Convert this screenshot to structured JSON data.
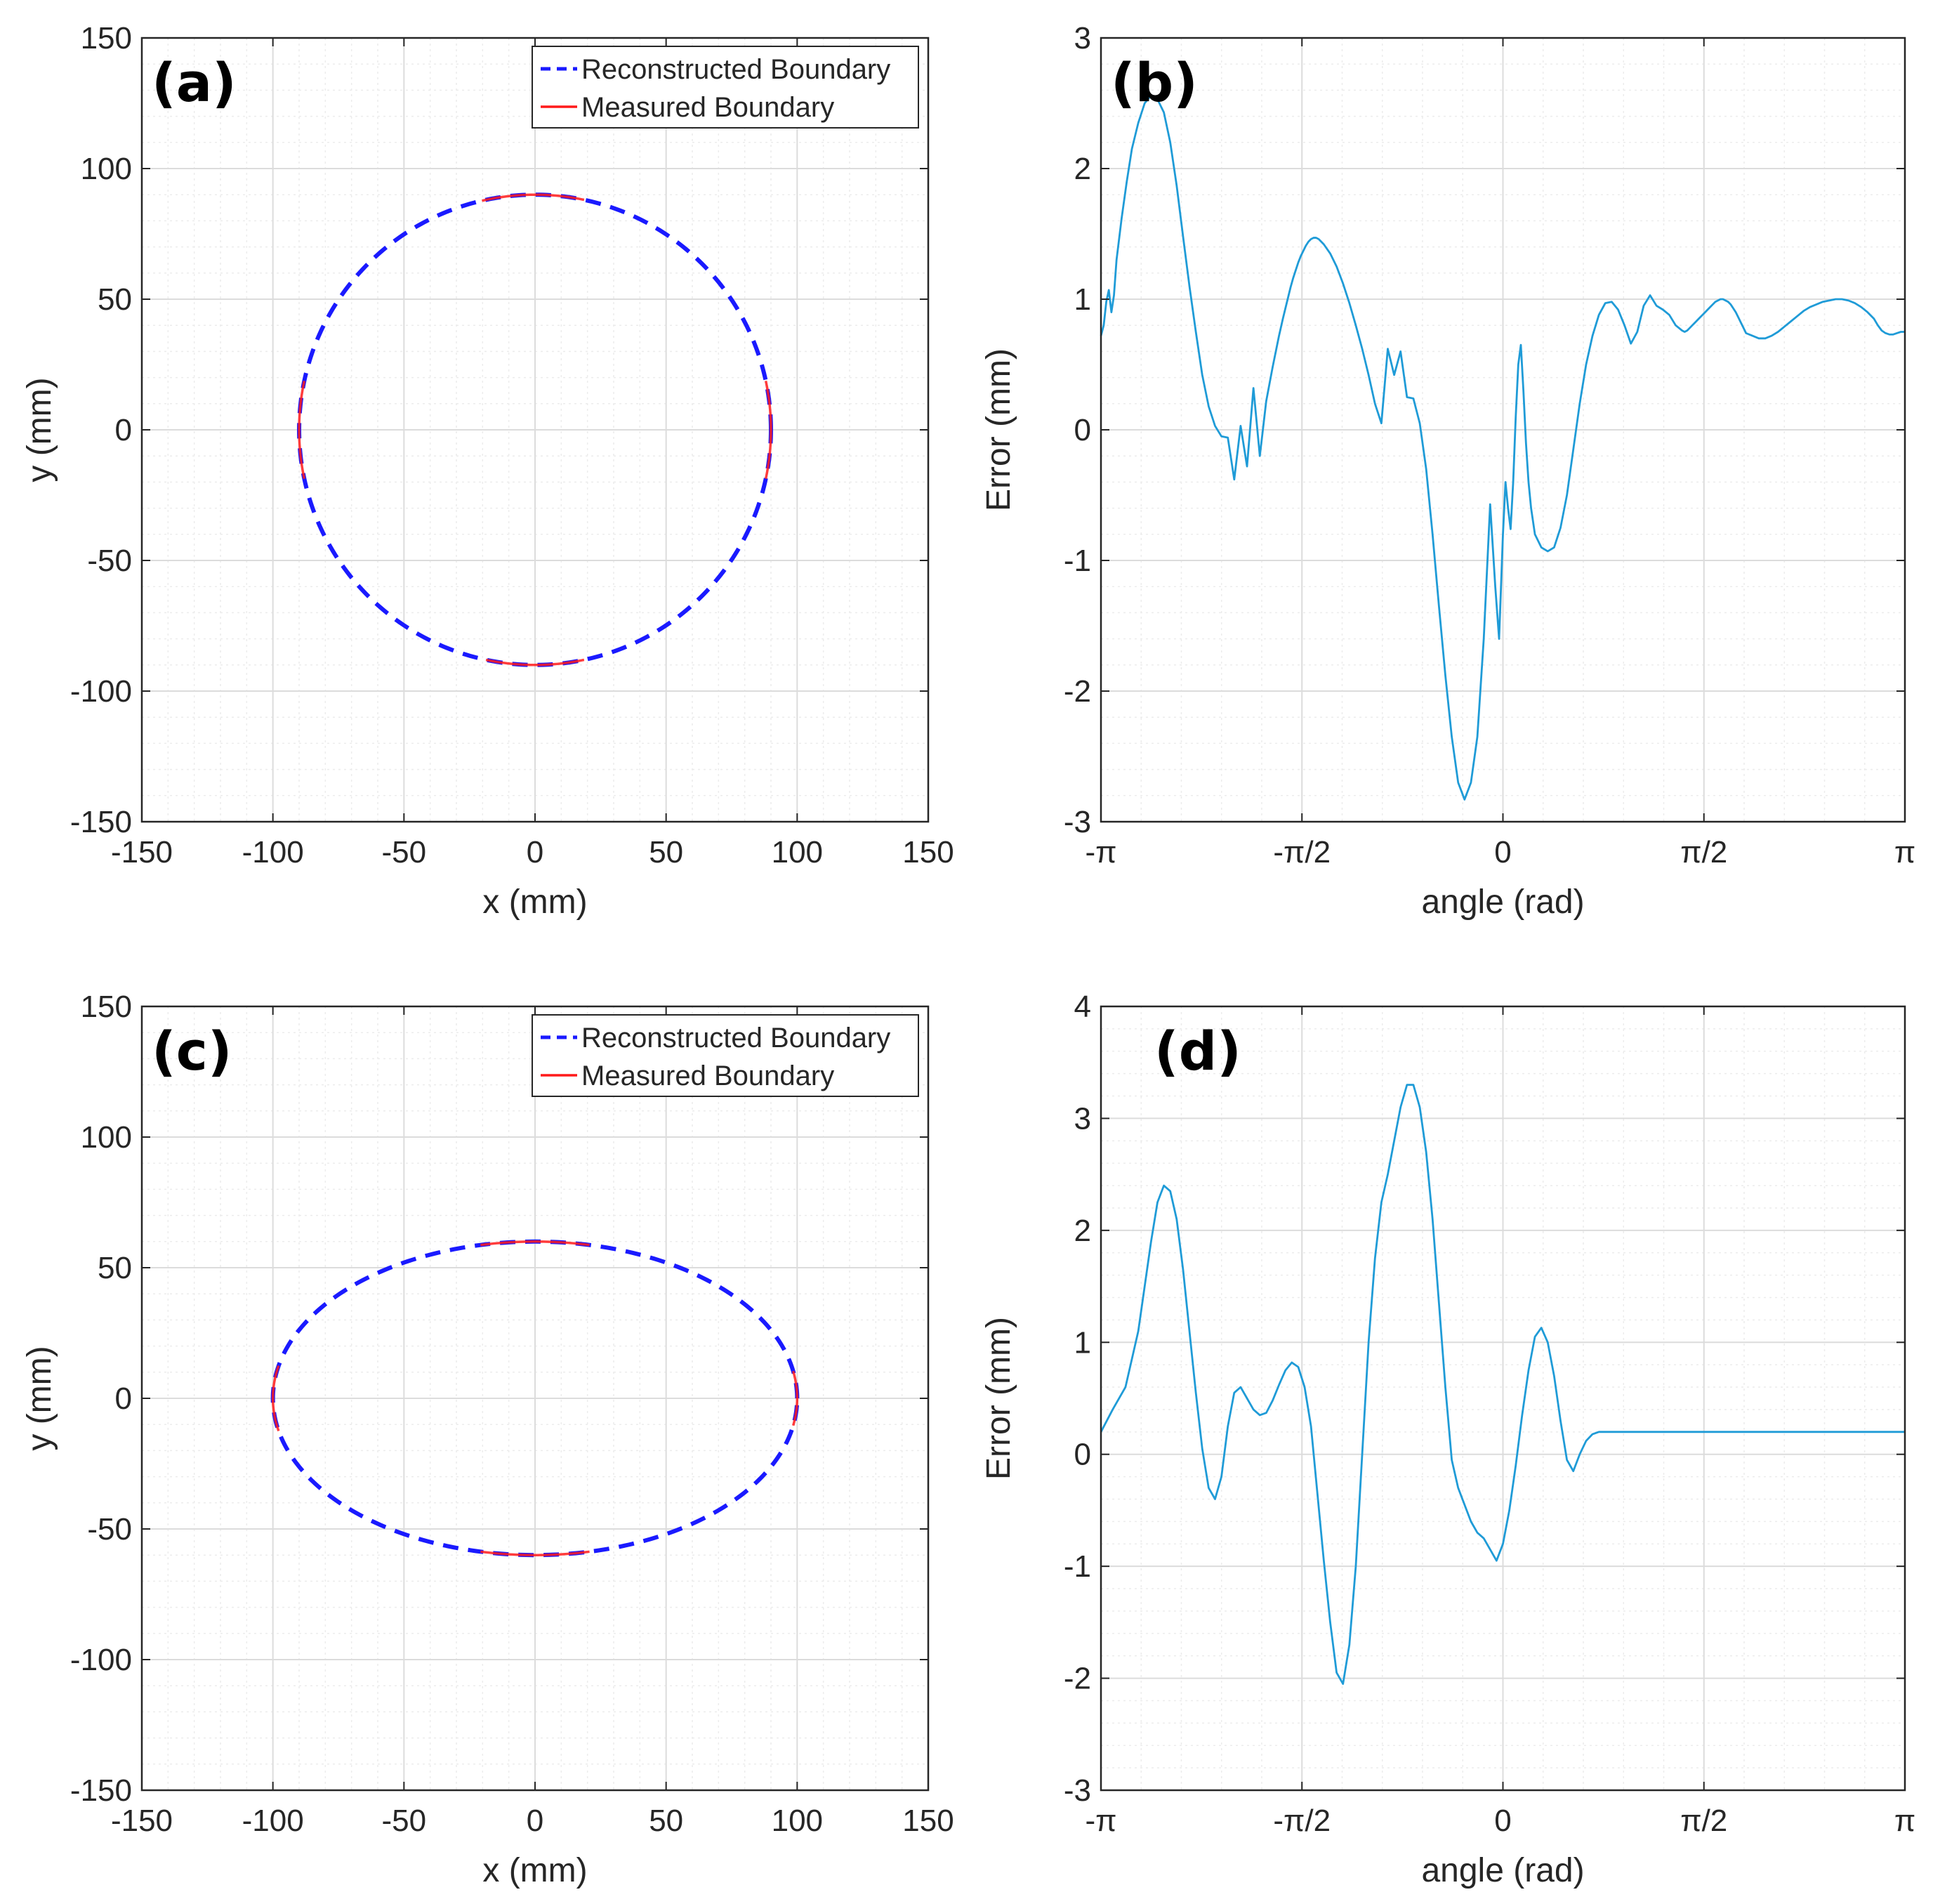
{
  "chart_data": [
    {
      "id": "a",
      "type": "line",
      "panel_label": "(a)",
      "xlabel": "x (mm)",
      "ylabel": "y (mm)",
      "xlim": [
        -150,
        150
      ],
      "ylim": [
        -150,
        150
      ],
      "xticks": [
        -150,
        -100,
        -50,
        0,
        50,
        100,
        150
      ],
      "yticks": [
        -150,
        -100,
        -50,
        0,
        50,
        100,
        150
      ],
      "xtick_labels": [
        "-150",
        "-100",
        "-50",
        "0",
        "50",
        "100",
        "150"
      ],
      "ytick_labels": [
        "-150",
        "-100",
        "-50",
        "0",
        "50",
        "100",
        "150"
      ],
      "grid": true,
      "legend": {
        "position": "top-right",
        "entries": [
          {
            "label": "Reconstructed Boundary",
            "style": "dashed",
            "color": "#1a1aff"
          },
          {
            "label": "Measured Boundary",
            "style": "solid",
            "color": "#ff1a1a"
          }
        ]
      },
      "series": [
        {
          "name": "Reconstructed Boundary",
          "color": "#1a1aff",
          "style": "dashed",
          "shape": {
            "kind": "closed",
            "rx": 90,
            "ry": 90,
            "points": 360
          }
        },
        {
          "name": "Measured Boundary",
          "color": "#ff1a1a",
          "style": "solid",
          "segments_deg": [
            [
              -12,
              12
            ],
            [
              78,
              103
            ],
            [
              168,
              192
            ],
            [
              258,
              282
            ]
          ],
          "shape": {
            "kind": "arcs",
            "rx": 90,
            "ry": 90
          }
        }
      ]
    },
    {
      "id": "b",
      "type": "line",
      "panel_label": "(b)",
      "xlabel": "angle (rad)",
      "ylabel": "Error (mm)",
      "xlim": [
        -3.14159,
        3.14159
      ],
      "ylim": [
        -3,
        3
      ],
      "xticks": [
        -3.14159,
        -1.5708,
        0,
        1.5708,
        3.14159
      ],
      "xtick_labels": [
        "-π",
        "-π/2",
        "0",
        "π/2",
        "π"
      ],
      "yticks": [
        -3,
        -2,
        -1,
        0,
        1,
        2,
        3
      ],
      "ytick_labels": [
        "-3",
        "-2",
        "-1",
        "0",
        "1",
        "2",
        "3"
      ],
      "grid": true,
      "series": [
        {
          "name": "Error",
          "color": "#1f9bd7",
          "x": [
            -3.1416,
            -3.12,
            -3.1,
            -3.08,
            -3.06,
            -3.04,
            -3.02,
            -2.98,
            -2.94,
            -2.9,
            -2.85,
            -2.8,
            -2.75,
            -2.7,
            -2.65,
            -2.6,
            -2.55,
            -2.5,
            -2.45,
            -2.4,
            -2.35,
            -2.3,
            -2.25,
            -2.2,
            -2.15,
            -2.1,
            -2.05,
            -2.0,
            -1.95,
            -1.9,
            -1.85,
            -1.8,
            -1.75,
            -1.72,
            -1.7,
            -1.68,
            -1.66,
            -1.64,
            -1.62,
            -1.6,
            -1.58,
            -1.56,
            -1.54,
            -1.52,
            -1.5,
            -1.48,
            -1.46,
            -1.44,
            -1.42,
            -1.4,
            -1.35,
            -1.3,
            -1.25,
            -1.2,
            -1.15,
            -1.1,
            -1.05,
            -1.0,
            -0.95,
            -0.9,
            -0.85,
            -0.8,
            -0.75,
            -0.7,
            -0.65,
            -0.6,
            -0.55,
            -0.5,
            -0.45,
            -0.4,
            -0.35,
            -0.3,
            -0.25,
            -0.2,
            -0.15,
            -0.1,
            -0.06,
            -0.03,
            0.0,
            0.02,
            0.04,
            0.06,
            0.08,
            0.1,
            0.12,
            0.14,
            0.16,
            0.18,
            0.2,
            0.22,
            0.25,
            0.3,
            0.35,
            0.4,
            0.45,
            0.5,
            0.55,
            0.6,
            0.65,
            0.7,
            0.75,
            0.8,
            0.85,
            0.9,
            0.95,
            1.0,
            1.05,
            1.1,
            1.15,
            1.2,
            1.25,
            1.3,
            1.35,
            1.4,
            1.42,
            1.44,
            1.46,
            1.48,
            1.5,
            1.52,
            1.54,
            1.56,
            1.58,
            1.6,
            1.62,
            1.64,
            1.66,
            1.68,
            1.7,
            1.72,
            1.74,
            1.76,
            1.78,
            1.8,
            1.82,
            1.84,
            1.86,
            1.88,
            1.9,
            1.95,
            2.0,
            2.05,
            2.1,
            2.15,
            2.2,
            2.25,
            2.3,
            2.35,
            2.4,
            2.45,
            2.5,
            2.55,
            2.6,
            2.65,
            2.7,
            2.75,
            2.8,
            2.85,
            2.9,
            2.93,
            2.96,
            2.99,
            3.02,
            3.05,
            3.08,
            3.11,
            3.1416
          ],
          "y": [
            0.72,
            0.8,
            0.98,
            1.07,
            0.9,
            1.03,
            1.3,
            1.62,
            1.9,
            2.15,
            2.35,
            2.5,
            2.56,
            2.53,
            2.43,
            2.2,
            1.87,
            1.48,
            1.1,
            0.75,
            0.42,
            0.18,
            0.03,
            -0.05,
            -0.06,
            -0.38,
            0.03,
            -0.28,
            0.32,
            -0.2,
            0.22,
            0.48,
            0.72,
            0.85,
            0.93,
            1.01,
            1.09,
            1.16,
            1.22,
            1.28,
            1.33,
            1.37,
            1.41,
            1.44,
            1.46,
            1.47,
            1.47,
            1.46,
            1.44,
            1.42,
            1.35,
            1.25,
            1.12,
            0.97,
            0.8,
            0.62,
            0.42,
            0.2,
            0.05,
            0.62,
            0.42,
            0.6,
            0.25,
            0.24,
            0.05,
            -0.3,
            -0.8,
            -1.35,
            -1.88,
            -2.35,
            -2.7,
            -2.83,
            -2.7,
            -2.35,
            -1.6,
            -0.57,
            -1.2,
            -1.6,
            -0.8,
            -0.4,
            -0.6,
            -0.76,
            -0.4,
            0.1,
            0.5,
            0.65,
            0.3,
            -0.1,
            -0.4,
            -0.6,
            -0.8,
            -0.9,
            -0.93,
            -0.9,
            -0.75,
            -0.5,
            -0.15,
            0.2,
            0.5,
            0.72,
            0.88,
            0.97,
            0.98,
            0.92,
            0.8,
            0.66,
            0.75,
            0.95,
            1.03,
            0.95,
            0.92,
            0.88,
            0.8,
            0.76,
            0.75,
            0.76,
            0.78,
            0.8,
            0.82,
            0.84,
            0.86,
            0.88,
            0.9,
            0.92,
            0.94,
            0.96,
            0.98,
            0.99,
            1.0,
            1.0,
            0.99,
            0.98,
            0.96,
            0.93,
            0.9,
            0.86,
            0.82,
            0.78,
            0.74,
            0.72,
            0.7,
            0.7,
            0.72,
            0.75,
            0.79,
            0.83,
            0.87,
            0.91,
            0.94,
            0.96,
            0.98,
            0.99,
            1.0,
            1.0,
            0.99,
            0.97,
            0.94,
            0.9,
            0.85,
            0.8,
            0.76,
            0.74,
            0.73,
            0.73,
            0.74,
            0.75,
            0.75
          ]
        }
      ]
    },
    {
      "id": "c",
      "type": "line",
      "panel_label": "(c)",
      "xlabel": "x (mm)",
      "ylabel": "y (mm)",
      "xlim": [
        -150,
        150
      ],
      "ylim": [
        -150,
        150
      ],
      "xticks": [
        -150,
        -100,
        -50,
        0,
        50,
        100,
        150
      ],
      "yticks": [
        -150,
        -100,
        -50,
        0,
        50,
        100,
        150
      ],
      "xtick_labels": [
        "-150",
        "-100",
        "-50",
        "0",
        "50",
        "100",
        "150"
      ],
      "ytick_labels": [
        "-150",
        "-100",
        "-50",
        "0",
        "50",
        "100",
        "150"
      ],
      "grid": true,
      "legend": {
        "position": "top-right",
        "entries": [
          {
            "label": "Reconstructed Boundary",
            "style": "dashed",
            "color": "#1a1aff"
          },
          {
            "label": "Measured Boundary",
            "style": "solid",
            "color": "#ff1a1a"
          }
        ]
      },
      "series": [
        {
          "name": "Reconstructed Boundary",
          "color": "#1a1aff",
          "style": "dashed",
          "shape": {
            "kind": "closed",
            "rx": 100,
            "ry": 60,
            "points": 360
          }
        },
        {
          "name": "Measured Boundary",
          "color": "#ff1a1a",
          "style": "solid",
          "segments_deg": [
            [
              -10,
              10
            ],
            [
              78,
              102
            ],
            [
              168,
              192
            ],
            [
              258,
              282
            ]
          ],
          "shape": {
            "kind": "arcs",
            "rx": 100,
            "ry": 60
          }
        }
      ]
    },
    {
      "id": "d",
      "type": "line",
      "panel_label": "(d)",
      "xlabel": "angle (rad)",
      "ylabel": "Error (mm)",
      "xlim": [
        -3.14159,
        3.14159
      ],
      "ylim": [
        -3,
        4
      ],
      "xticks": [
        -3.14159,
        -1.5708,
        0,
        1.5708,
        3.14159
      ],
      "xtick_labels": [
        "-π",
        "-π/2",
        "0",
        "π/2",
        "π"
      ],
      "yticks": [
        -3,
        -2,
        -1,
        0,
        1,
        2,
        3,
        4
      ],
      "ytick_labels": [
        "-3",
        "-2",
        "-1",
        "0",
        "1",
        "2",
        "3",
        "4"
      ],
      "grid": true,
      "series": [
        {
          "name": "Error",
          "color": "#1f9bd7",
          "x": [
            -3.1416,
            -3.05,
            -2.95,
            -2.85,
            -2.8,
            -2.75,
            -2.7,
            -2.65,
            -2.6,
            -2.55,
            -2.5,
            -2.45,
            -2.4,
            -2.35,
            -2.3,
            -2.25,
            -2.2,
            -2.15,
            -2.1,
            -2.05,
            -2.0,
            -1.95,
            -1.9,
            -1.85,
            -1.8,
            -1.75,
            -1.7,
            -1.65,
            -1.6,
            -1.55,
            -1.5,
            -1.45,
            -1.4,
            -1.35,
            -1.3,
            -1.25,
            -1.2,
            -1.15,
            -1.1,
            -1.05,
            -1.0,
            -0.95,
            -0.9,
            -0.85,
            -0.8,
            -0.75,
            -0.7,
            -0.65,
            -0.6,
            -0.55,
            -0.5,
            -0.45,
            -0.4,
            -0.35,
            -0.3,
            -0.25,
            -0.2,
            -0.15,
            -0.1,
            -0.05,
            0.0,
            0.05,
            0.1,
            0.15,
            0.2,
            0.25,
            0.3,
            0.35,
            0.4,
            0.45,
            0.5,
            0.55,
            0.6,
            0.65,
            0.7,
            0.75,
            0.8,
            0.85,
            0.9,
            0.95,
            1.0,
            1.05,
            1.1,
            1.15,
            1.2,
            1.25,
            1.3,
            1.35,
            1.4,
            1.45,
            1.5,
            1.55,
            1.6,
            1.65,
            1.7,
            1.75,
            1.8,
            1.85,
            1.9,
            1.95,
            2.0,
            2.05,
            2.1,
            2.15,
            2.2,
            2.25,
            2.3,
            2.35,
            2.4,
            2.45,
            2.5,
            2.55,
            2.6,
            2.65,
            2.7,
            2.75,
            2.8,
            2.85,
            2.9,
            2.95,
            3.0,
            3.05,
            3.1,
            3.1416
          ],
          "y": [
            0.2,
            0.4,
            0.6,
            1.1,
            1.5,
            1.9,
            2.25,
            2.4,
            2.35,
            2.1,
            1.65,
            1.1,
            0.55,
            0.05,
            -0.3,
            -0.4,
            -0.2,
            0.25,
            0.55,
            0.6,
            0.5,
            0.4,
            0.35,
            0.37,
            0.48,
            0.62,
            0.75,
            0.82,
            0.78,
            0.6,
            0.25,
            -0.35,
            -0.95,
            -1.5,
            -1.95,
            -2.05,
            -1.7,
            -1.0,
            0.0,
            1.0,
            1.75,
            2.25,
            2.5,
            2.8,
            3.1,
            3.3,
            3.3,
            3.1,
            2.7,
            2.1,
            1.35,
            0.6,
            -0.05,
            -0.3,
            -0.45,
            -0.6,
            -0.7,
            -0.75,
            -0.85,
            -0.95,
            -0.8,
            -0.5,
            -0.1,
            0.35,
            0.75,
            1.05,
            1.13,
            1.0,
            0.7,
            0.3,
            -0.05,
            -0.15,
            0.0,
            0.12,
            0.18,
            0.2,
            0.2,
            0.2,
            0.2,
            0.2,
            0.2,
            0.2,
            0.2,
            0.2,
            0.2,
            0.2,
            0.2,
            0.2,
            0.2,
            0.2,
            0.2,
            0.2,
            0.2,
            0.2,
            0.2,
            0.2,
            0.2,
            0.2,
            0.2,
            0.2,
            0.2,
            0.2,
            0.2,
            0.2,
            0.2,
            0.2,
            0.2,
            0.2,
            0.2,
            0.2,
            0.2,
            0.2,
            0.2,
            0.2,
            0.2,
            0.2,
            0.2,
            0.2,
            0.2,
            0.2,
            0.2,
            0.2,
            0.2,
            0.2
          ]
        }
      ]
    }
  ]
}
